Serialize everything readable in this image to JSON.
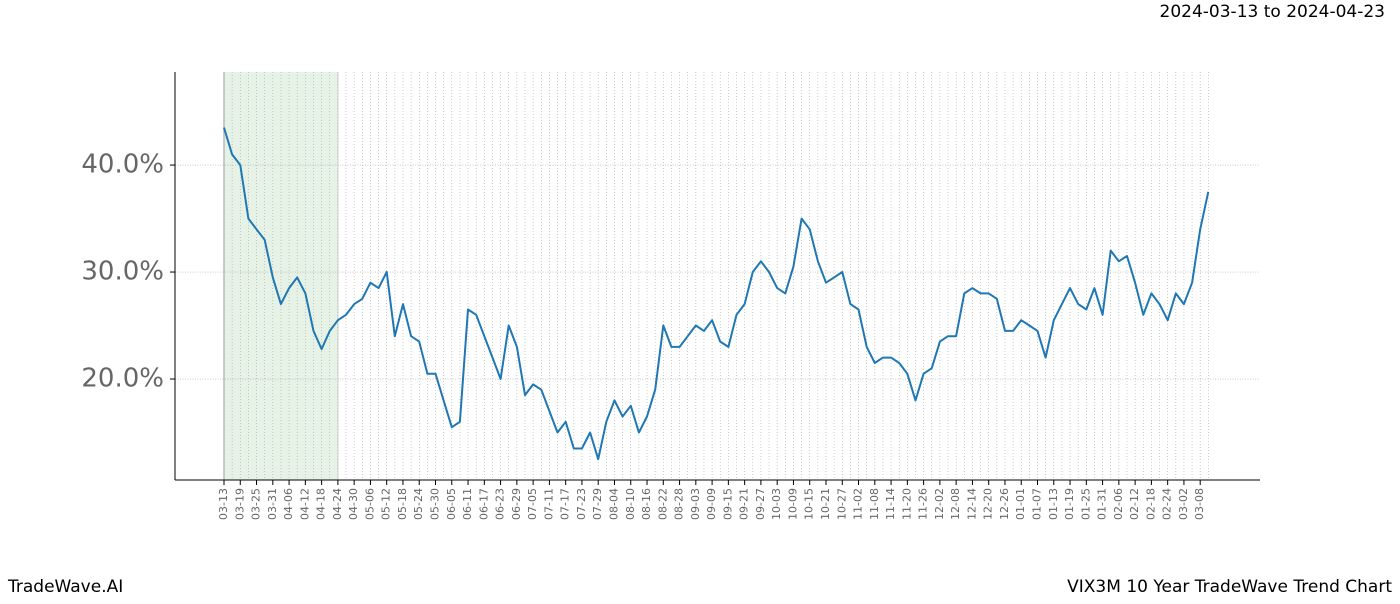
{
  "header": {
    "date_range": "2024-03-13 to 2024-04-23"
  },
  "footer": {
    "left": "TradeWave.AI",
    "right": "VIX3M 10 Year TradeWave Trend Chart"
  },
  "chart_data": {
    "type": "line",
    "color": "#1f77b4",
    "highlight_range": [
      "03-13",
      "04-24"
    ],
    "highlight_color": "#e5f2e5",
    "grid": true,
    "ylim": [
      10.56,
      48.7
    ],
    "yticks": [
      {
        "value": 20,
        "label": "20.0%"
      },
      {
        "value": 30,
        "label": "30.0%"
      },
      {
        "value": 40,
        "label": "40.0%"
      }
    ],
    "categories": [
      "03-13",
      null,
      "03-19",
      null,
      "03-25",
      null,
      "03-31",
      null,
      "04-06",
      null,
      "04-12",
      null,
      "04-18",
      null,
      "04-24",
      null,
      "04-30",
      null,
      "05-06",
      null,
      "05-12",
      null,
      "05-18",
      null,
      "05-24",
      null,
      "05-30",
      null,
      "06-05",
      null,
      "06-11",
      null,
      "06-17",
      null,
      "06-23",
      null,
      "06-29",
      null,
      "07-05",
      null,
      "07-11",
      null,
      "07-17",
      null,
      "07-23",
      null,
      "07-29",
      null,
      "08-04",
      null,
      "08-10",
      null,
      "08-16",
      null,
      "08-22",
      null,
      "08-28",
      null,
      "09-03",
      null,
      "09-09",
      null,
      "09-15",
      null,
      "09-21",
      null,
      "09-27",
      null,
      "10-03",
      null,
      "10-09",
      null,
      "10-15",
      null,
      "10-21",
      null,
      "10-27",
      null,
      "11-02",
      null,
      "11-08",
      null,
      "11-14",
      null,
      "11-20",
      null,
      "11-26",
      null,
      "12-02",
      null,
      "12-08",
      null,
      "12-14",
      null,
      "12-20",
      null,
      "12-26",
      null,
      "01-01",
      null,
      "01-07",
      null,
      "01-13",
      null,
      "01-19",
      null,
      "01-25",
      null,
      "01-31",
      null,
      "02-06",
      null,
      "02-12",
      null,
      "02-18",
      null,
      "02-24",
      null,
      "03-02",
      null,
      "03-08",
      null
    ],
    "values": [
      43.5,
      41,
      40,
      35,
      34,
      33,
      29.5,
      27,
      28.5,
      29.5,
      28,
      24.5,
      22.8,
      24.5,
      25.5,
      26,
      27,
      27.5,
      29,
      28.5,
      30,
      24,
      27,
      24,
      23.5,
      20.5,
      20.5,
      18,
      15.5,
      16,
      26.5,
      26,
      24,
      22,
      20,
      25,
      23,
      18.5,
      19.5,
      19,
      17,
      15,
      16,
      13.5,
      13.5,
      15,
      12.5,
      16,
      18,
      16.5,
      17.5,
      15,
      16.5,
      19,
      25,
      23,
      23,
      24,
      25,
      24.5,
      25.5,
      23.5,
      23,
      26,
      27,
      30,
      31,
      30,
      28.5,
      28,
      30.5,
      35,
      34,
      31,
      29,
      29.5,
      30,
      27,
      26.5,
      23,
      21.5,
      22,
      22,
      21.5,
      20.5,
      18,
      20.5,
      21,
      23.5,
      24,
      24,
      28,
      28.5,
      28,
      28,
      27.5,
      24.5,
      24.5,
      25.5,
      25,
      24.5,
      22,
      25.5,
      27,
      28.5,
      27,
      26.5,
      28.5,
      26,
      32,
      31,
      31.5,
      29,
      26,
      28,
      27,
      25.5,
      28,
      27,
      29,
      34,
      37.5
    ]
  }
}
